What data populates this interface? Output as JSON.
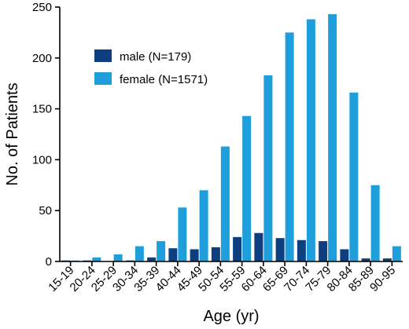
{
  "chart_data": {
    "type": "bar",
    "xlabel": "Age (yr)",
    "ylabel": "No. of Patients",
    "ylim": [
      0,
      250
    ],
    "yticks": [
      0,
      50,
      100,
      150,
      200,
      250
    ],
    "categories": [
      "15-19",
      "20-24",
      "25-29",
      "30-34",
      "35-39",
      "40-44",
      "45-49",
      "50-54",
      "55-59",
      "60-64",
      "65-69",
      "70-74",
      "75-79",
      "80-84",
      "85-89",
      "90-95"
    ],
    "series": [
      {
        "name": "male (N=179)",
        "color": "#0d3f80",
        "values": [
          1,
          1,
          0,
          1,
          4,
          13,
          12,
          14,
          24,
          28,
          23,
          21,
          20,
          12,
          3,
          3
        ]
      },
      {
        "name": "female (N=1571)",
        "color": "#1e9fdc",
        "values": [
          1,
          4,
          7,
          15,
          20,
          53,
          70,
          113,
          143,
          183,
          225,
          238,
          243,
          166,
          75,
          15
        ]
      }
    ],
    "legend_position": "upper-left",
    "grid": false
  }
}
